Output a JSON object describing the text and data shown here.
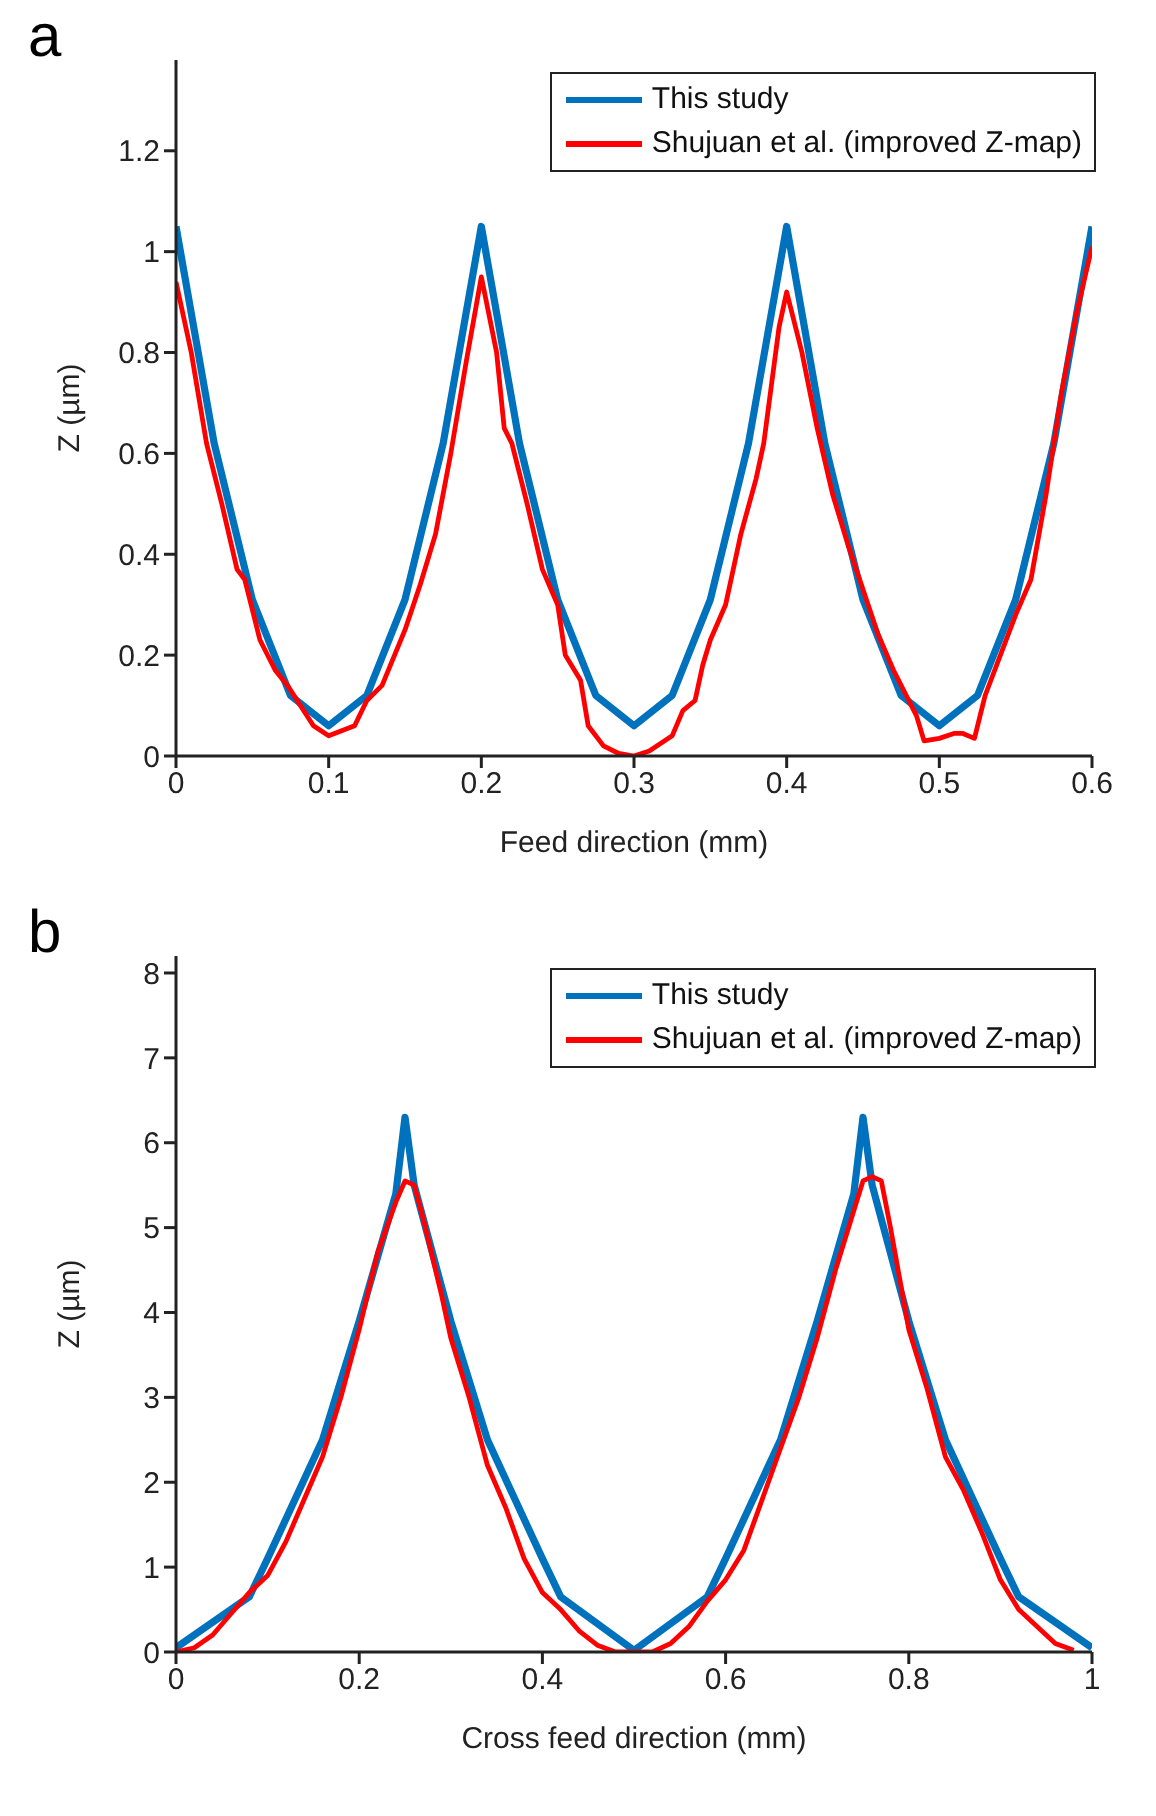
{
  "chart_data": [
    {
      "type": "line",
      "title": "a",
      "xlabel": "Feed direction (mm)",
      "ylabel": "Z (µm)",
      "xlim": [
        0,
        0.6
      ],
      "xticks": [
        0,
        0.1,
        0.2,
        0.3,
        0.4,
        0.5,
        0.6
      ],
      "ylim": [
        0,
        1.38
      ],
      "yticks": [
        0,
        0.2,
        0.4,
        0.6,
        0.8,
        1,
        1.2
      ],
      "grid": false,
      "legend": "top right",
      "marker": "none",
      "line_style": "solid",
      "series": [
        {
          "name": "This study",
          "color": "#0072bd",
          "x": [
            0,
            0.025,
            0.05,
            0.075,
            0.1,
            0.125,
            0.15,
            0.175,
            0.2,
            0.225,
            0.25,
            0.275,
            0.3,
            0.325,
            0.35,
            0.375,
            0.4,
            0.425,
            0.45,
            0.475,
            0.5,
            0.525,
            0.55,
            0.575,
            0.6
          ],
          "values": [
            1.05,
            0.62,
            0.31,
            0.12,
            0.06,
            0.12,
            0.31,
            0.62,
            1.05,
            0.62,
            0.31,
            0.12,
            0.06,
            0.12,
            0.31,
            0.62,
            1.05,
            0.62,
            0.31,
            0.12,
            0.06,
            0.12,
            0.31,
            0.62,
            1.05
          ]
        },
        {
          "name": "Shujuan et al. (improved Z-map)",
          "color": "#ff0000",
          "x": [
            0,
            0.01,
            0.02,
            0.03,
            0.04,
            0.045,
            0.055,
            0.065,
            0.073,
            0.09,
            0.1,
            0.117,
            0.125,
            0.135,
            0.15,
            0.16,
            0.17,
            0.18,
            0.19,
            0.2,
            0.21,
            0.215,
            0.22,
            0.23,
            0.24,
            0.25,
            0.255,
            0.265,
            0.27,
            0.28,
            0.29,
            0.3,
            0.31,
            0.325,
            0.332,
            0.34,
            0.345,
            0.35,
            0.36,
            0.37,
            0.38,
            0.385,
            0.395,
            0.4,
            0.41,
            0.42,
            0.43,
            0.44,
            0.45,
            0.46,
            0.47,
            0.48,
            0.485,
            0.49,
            0.5,
            0.51,
            0.515,
            0.523,
            0.53,
            0.54,
            0.55,
            0.56,
            0.57,
            0.58,
            0.59,
            0.6
          ],
          "values": [
            0.94,
            0.8,
            0.62,
            0.5,
            0.37,
            0.35,
            0.23,
            0.17,
            0.14,
            0.06,
            0.04,
            0.06,
            0.11,
            0.14,
            0.25,
            0.34,
            0.44,
            0.6,
            0.78,
            0.95,
            0.8,
            0.65,
            0.62,
            0.5,
            0.37,
            0.3,
            0.2,
            0.15,
            0.06,
            0.02,
            0.005,
            0,
            0.01,
            0.04,
            0.09,
            0.11,
            0.18,
            0.23,
            0.3,
            0.44,
            0.55,
            0.62,
            0.85,
            0.92,
            0.8,
            0.65,
            0.52,
            0.42,
            0.33,
            0.24,
            0.17,
            0.11,
            0.08,
            0.03,
            0.035,
            0.045,
            0.045,
            0.035,
            0.12,
            0.2,
            0.28,
            0.35,
            0.52,
            0.72,
            0.88,
            1.01
          ]
        }
      ]
    },
    {
      "type": "line",
      "title": "b",
      "xlabel": "Cross feed direction (mm)",
      "ylabel": "Z (µm)",
      "xlim": [
        0,
        1
      ],
      "xticks": [
        0,
        0.2,
        0.4,
        0.6,
        0.8,
        1
      ],
      "ylim": [
        0,
        8.2
      ],
      "yticks": [
        0,
        1,
        2,
        3,
        4,
        5,
        6,
        7,
        8
      ],
      "grid": false,
      "legend": "top right",
      "marker": "none",
      "line_style": "solid",
      "series": [
        {
          "name": "This study",
          "color": "#0072bd",
          "x": [
            0,
            0.08,
            0.1,
            0.16,
            0.2,
            0.24,
            0.25,
            0.26,
            0.3,
            0.34,
            0.4,
            0.42,
            0.5,
            0.58,
            0.6,
            0.66,
            0.7,
            0.74,
            0.75,
            0.76,
            0.8,
            0.84,
            0.9,
            0.92,
            1
          ],
          "values": [
            0.05,
            0.65,
            1.1,
            2.5,
            3.9,
            5.4,
            6.3,
            5.5,
            3.9,
            2.5,
            1.1,
            0.65,
            0.02,
            0.65,
            1.1,
            2.5,
            3.9,
            5.4,
            6.3,
            5.5,
            3.9,
            2.5,
            1.1,
            0.65,
            0.05
          ]
        },
        {
          "name": "Shujuan et al. (improved Z-map)",
          "color": "#ff0000",
          "x": [
            0,
            0.02,
            0.04,
            0.06,
            0.08,
            0.1,
            0.12,
            0.14,
            0.16,
            0.18,
            0.2,
            0.22,
            0.24,
            0.25,
            0.26,
            0.27,
            0.29,
            0.3,
            0.32,
            0.34,
            0.36,
            0.38,
            0.4,
            0.42,
            0.44,
            0.46,
            0.48,
            0.5,
            0.52,
            0.54,
            0.56,
            0.58,
            0.6,
            0.62,
            0.64,
            0.66,
            0.68,
            0.7,
            0.72,
            0.74,
            0.75,
            0.76,
            0.77,
            0.78,
            0.79,
            0.8,
            0.82,
            0.84,
            0.86,
            0.88,
            0.9,
            0.92,
            0.94,
            0.96,
            0.98
          ],
          "values": [
            0,
            0.05,
            0.2,
            0.45,
            0.7,
            0.9,
            1.3,
            1.8,
            2.3,
            3,
            3.8,
            4.7,
            5.3,
            5.55,
            5.5,
            5.1,
            4.2,
            3.7,
            3,
            2.2,
            1.7,
            1.1,
            0.7,
            0.5,
            0.25,
            0.08,
            0,
            0,
            0,
            0.1,
            0.3,
            0.6,
            0.85,
            1.2,
            1.8,
            2.4,
            3,
            3.7,
            4.5,
            5.2,
            5.55,
            5.6,
            5.55,
            5,
            4.4,
            3.8,
            3.1,
            2.3,
            1.9,
            1.4,
            0.85,
            0.5,
            0.3,
            0.1,
            0.02
          ]
        }
      ]
    }
  ]
}
